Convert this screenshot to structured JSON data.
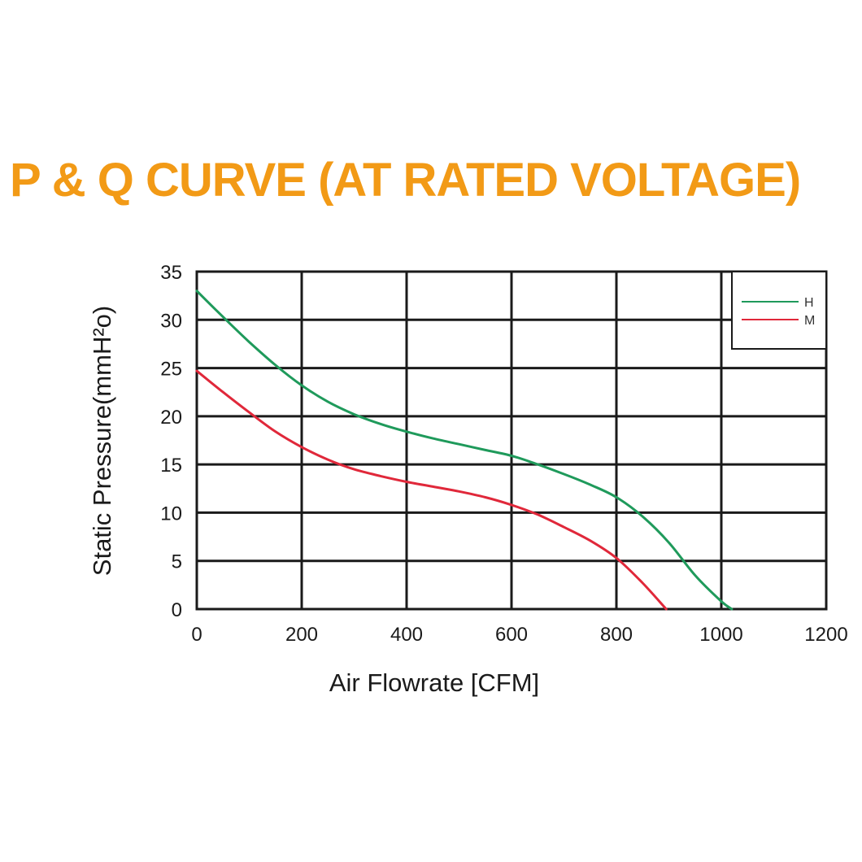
{
  "chart_data": {
    "type": "line",
    "title": "P & Q CURVE (AT RATED VOLTAGE)",
    "xlabel": "Air  Flowrate   [CFM]",
    "ylabel": "Static Pressure(mmH²o)",
    "xlim": [
      0,
      1200
    ],
    "ylim": [
      0,
      35
    ],
    "xticks": [
      "0",
      "200",
      "400",
      "600",
      "800",
      "1000",
      "1200"
    ],
    "yticks": [
      "0",
      "5",
      "10",
      "15",
      "20",
      "25",
      "30",
      "35"
    ],
    "grid": true,
    "legend_position": "top-right",
    "series": [
      {
        "name": "H",
        "color": "#1f9a5b",
        "x": [
          0,
          50,
          100,
          150,
          200,
          250,
          300,
          350,
          400,
          450,
          500,
          550,
          600,
          650,
          700,
          750,
          800,
          850,
          900,
          950,
          1000,
          1020
        ],
        "y": [
          33,
          30.3,
          27.7,
          25.3,
          23.2,
          21.5,
          20.2,
          19.2,
          18.4,
          17.7,
          17.1,
          16.5,
          15.9,
          15.0,
          14.0,
          12.9,
          11.6,
          9.6,
          6.9,
          3.5,
          0.8,
          0
        ]
      },
      {
        "name": "M",
        "color": "#e0283a",
        "x": [
          0,
          50,
          100,
          150,
          200,
          250,
          300,
          350,
          400,
          450,
          500,
          550,
          600,
          650,
          700,
          750,
          800,
          850,
          895
        ],
        "y": [
          24.7,
          22.5,
          20.4,
          18.4,
          16.8,
          15.5,
          14.5,
          13.8,
          13.2,
          12.7,
          12.2,
          11.6,
          10.8,
          9.8,
          8.5,
          7.1,
          5.3,
          2.7,
          0
        ]
      }
    ]
  }
}
